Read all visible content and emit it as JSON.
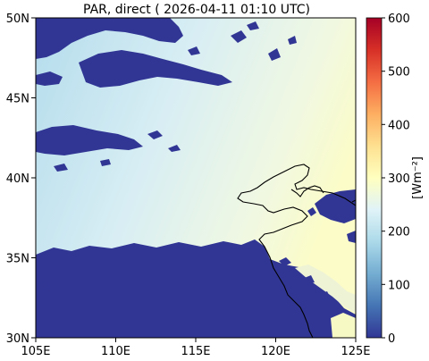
{
  "title": "PAR, direct ( 2026-04-11 01:10 UTC)",
  "map": {
    "lon_range": [
      105,
      125
    ],
    "lat_range": [
      30,
      50
    ],
    "x_ticks": [
      "105E",
      "110E",
      "115E",
      "120E",
      "125E"
    ],
    "y_ticks": [
      "50N",
      "45N",
      "40N",
      "35N",
      "30N"
    ],
    "no_data_color": "#313695",
    "coastline_color": "#000000"
  },
  "colorbar": {
    "label": "[Wm⁻²]",
    "min": 0,
    "max": 600,
    "ticks": [
      "600",
      "500",
      "400",
      "300",
      "200",
      "100",
      "0"
    ],
    "colormap": "RdYlBu_r",
    "colors": [
      "#313695",
      "#4575b4",
      "#74add1",
      "#abd9e9",
      "#e0f3f8",
      "#ffffbf",
      "#fee090",
      "#fdae61",
      "#f46d43",
      "#d73027",
      "#a50026"
    ]
  }
}
